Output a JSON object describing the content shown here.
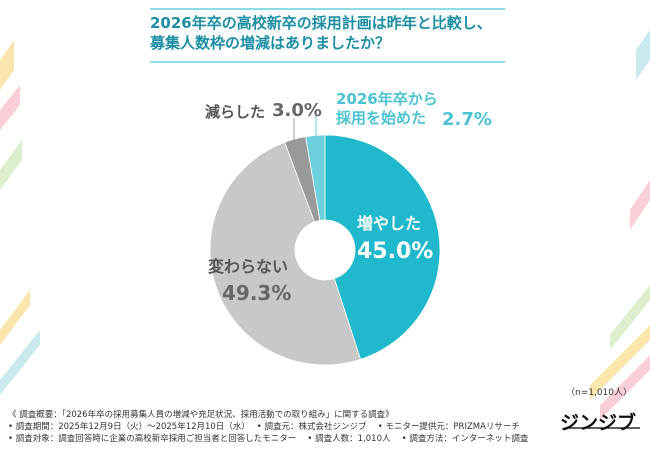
{
  "chart_data": {
    "type": "donut",
    "title": "2026年卒の高校新卒の採用計画は昨年と比較し、\n募集人数枠の増減はありましたか？",
    "categories": [
      "増やした",
      "変わらない",
      "減らした",
      "2026年卒から\n採用を始めた"
    ],
    "values": [
      45.0,
      49.3,
      3.0,
      2.7
    ],
    "value_labels": [
      "45.0%",
      "49.3%",
      "3.0%",
      "2.7%"
    ],
    "colors": [
      "#1fb8cc",
      "#c8c8c8",
      "#9a9a9a",
      "#6dd0dd"
    ],
    "sample_note": "（n=1,010人）"
  },
  "footer": {
    "lines": [
      "《 調査概要：「2026年卒の採用募集人員の増減や充足状況、採用活動での取り組み」に関する調査》",
      "• 調査期間：2025年12月9日（火）〜2025年12月10日（水）　 • 調査元：株式会社ジンジブ　 • モニター提供元：PRIZMAリサーチ",
      "• 調査対象：調査回答時に企業の高校新卒採用ご担当者と回答したモニター　 • 調査人数：1,010人　 • 調査方法：インターネット調査"
    ],
    "logo": "ジンジブ"
  }
}
